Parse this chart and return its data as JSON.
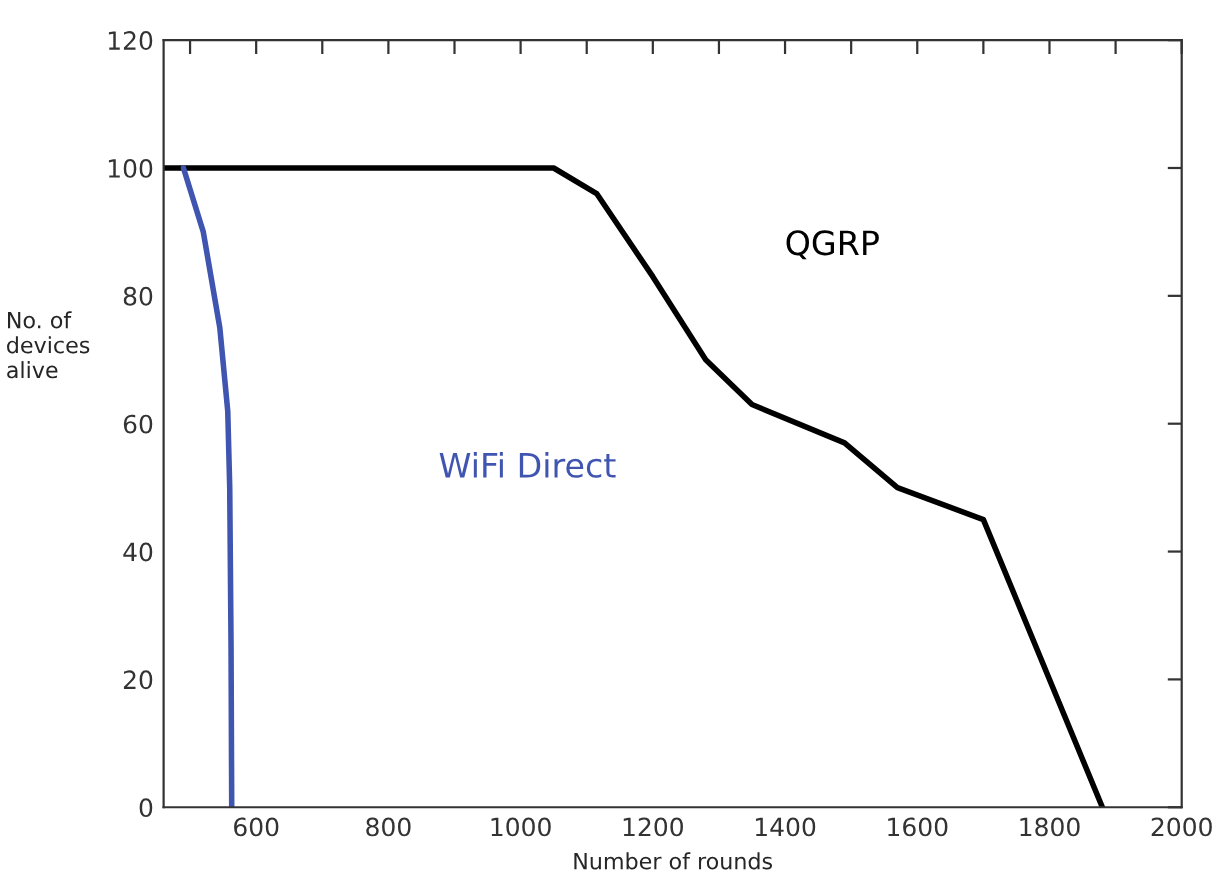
{
  "chart_data": {
    "type": "line",
    "xlabel": "Number of rounds",
    "ylabel": "No. of\ndevices\nalive",
    "xlim": [
      460,
      2000
    ],
    "ylim": [
      0,
      120
    ],
    "xticks": [
      {
        "value": 500,
        "label": null
      },
      600,
      {
        "value": 700,
        "label": null
      },
      800,
      {
        "value": 900,
        "label": null
      },
      1000,
      {
        "value": 1100,
        "label": null
      },
      1200,
      {
        "value": 1300,
        "label": null
      },
      1400,
      {
        "value": 1500,
        "label": null
      },
      1600,
      {
        "value": 1700,
        "label": null
      },
      1800,
      {
        "value": 1900,
        "label": null
      },
      2000
    ],
    "yticks": [
      0,
      20,
      40,
      60,
      80,
      100,
      120
    ],
    "grid": false,
    "legend": false,
    "marker": "none",
    "line_style": "solid",
    "series": [
      {
        "name": "QGRP",
        "color": "#000000",
        "x": [
          460,
          1050,
          1115,
          1200,
          1280,
          1350,
          1490,
          1570,
          1700,
          1880
        ],
        "values": [
          100,
          100,
          96,
          83,
          70,
          63,
          57,
          50,
          45,
          0
        ]
      },
      {
        "name": "WiFi Direct",
        "color": "#3f55b0",
        "x": [
          490,
          520,
          545,
          557,
          560,
          562,
          563
        ],
        "values": [
          100,
          90,
          75,
          62,
          50,
          25,
          0
        ]
      }
    ]
  }
}
